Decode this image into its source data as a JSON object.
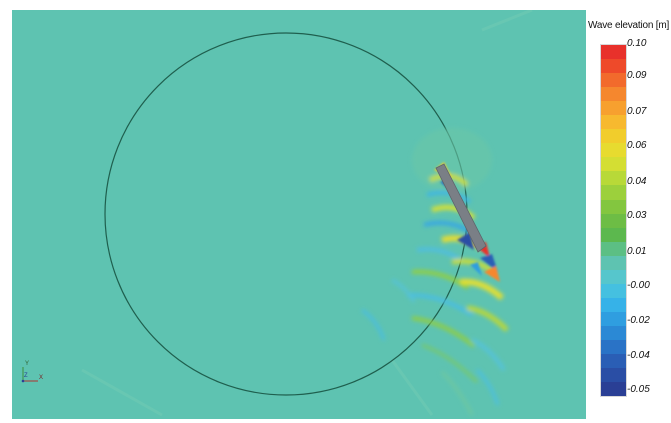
{
  "legend": {
    "title": "Wave elevation [m]",
    "tick_labels": [
      "0.10",
      "0.09",
      "0.07",
      "0.06",
      "0.04",
      "0.03",
      "0.01",
      "-0.00",
      "-0.02",
      "-0.04",
      "-0.05"
    ],
    "colors": [
      "#e8312b",
      "#ee4a2a",
      "#f26a2c",
      "#f5872e",
      "#f7a02f",
      "#f7b92f",
      "#f1cd2c",
      "#e7db2f",
      "#d4de33",
      "#b8d938",
      "#9cd03c",
      "#83c63f",
      "#6dbd45",
      "#5cb84e",
      "#5cbf84",
      "#5ec3b1",
      "#56c6cc",
      "#45c0e0",
      "#36b2e8",
      "#2f9ee0",
      "#2b89d5",
      "#2a73c6",
      "#2a5eb5",
      "#2a4ea5",
      "#2a3f95"
    ]
  },
  "scene": {
    "background_color": "#5ec3b1",
    "circle_color": "#1f5f4e",
    "ship_color": "#7a7f86"
  },
  "axes_triad": {
    "labels": [
      "Y",
      "Z",
      "X"
    ]
  }
}
